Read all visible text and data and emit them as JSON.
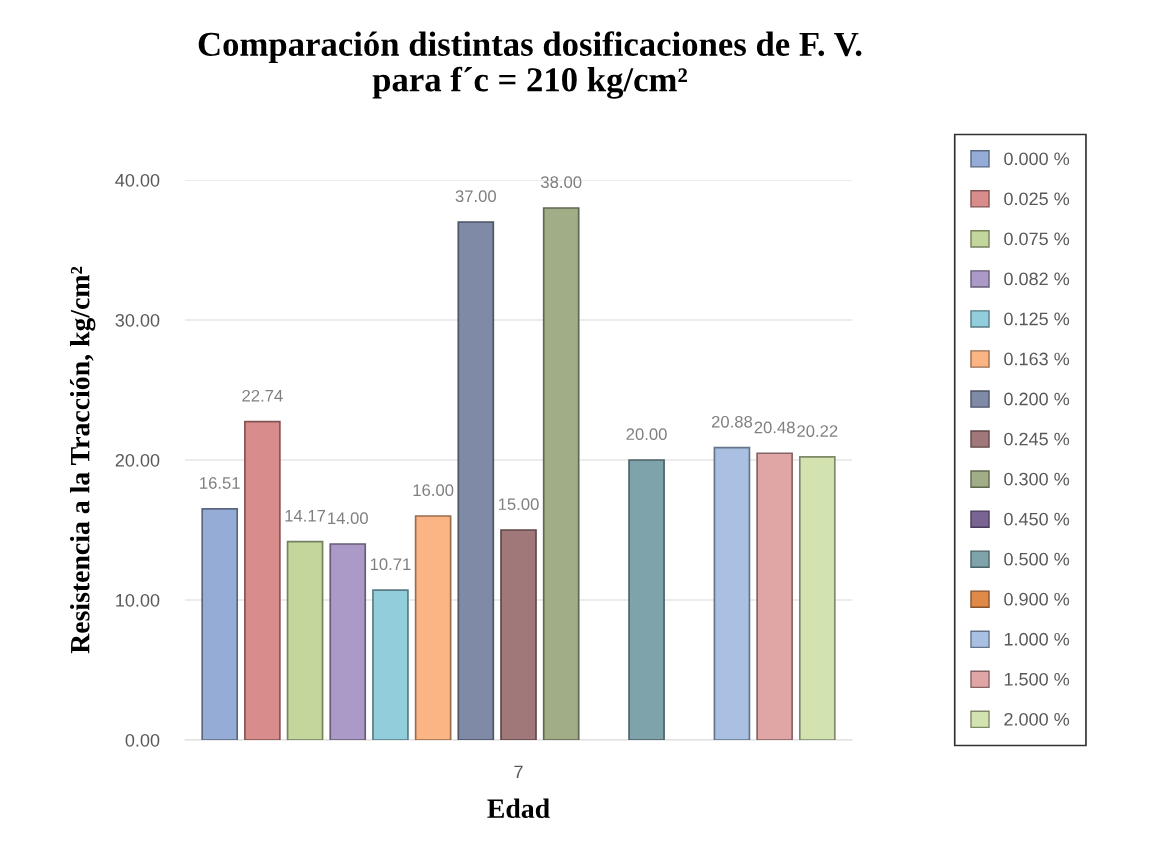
{
  "chart_data": {
    "type": "bar",
    "title": "Comparación distintas dosificaciones de F. V.\npara f´c = 210 kg/cm²",
    "xlabel": "Edad",
    "ylabel": "Resistencia a la Tracción, kg/cm²",
    "categories": [
      "7"
    ],
    "series": [
      {
        "name": "0.000 %",
        "color": "#95acd6",
        "values": [
          16.51
        ],
        "value_labels": [
          "16.51"
        ]
      },
      {
        "name": "0.025 %",
        "color": "#d98c8c",
        "values": [
          22.74
        ],
        "value_labels": [
          "22.74"
        ]
      },
      {
        "name": "0.075 %",
        "color": "#c3d69b",
        "values": [
          14.17
        ],
        "value_labels": [
          "14.17"
        ]
      },
      {
        "name": "0.082 %",
        "color": "#ab9ac7",
        "values": [
          14.0
        ],
        "value_labels": [
          "14.00"
        ]
      },
      {
        "name": "0.125 %",
        "color": "#92cddc",
        "values": [
          10.71
        ],
        "value_labels": [
          "10.71"
        ]
      },
      {
        "name": "0.163 %",
        "color": "#fbb584",
        "values": [
          16.0
        ],
        "value_labels": [
          "16.00"
        ]
      },
      {
        "name": "0.200 %",
        "color": "#7f8ba6",
        "values": [
          37.0
        ],
        "value_labels": [
          "37.00"
        ]
      },
      {
        "name": "0.245 %",
        "color": "#a0787a",
        "values": [
          15.0
        ],
        "value_labels": [
          "15.00"
        ]
      },
      {
        "name": "0.300 %",
        "color": "#a0ad86",
        "values": [
          38.0
        ],
        "value_labels": [
          "38.00"
        ]
      },
      {
        "name": "0.450 %",
        "color": "#7a6494",
        "values": [
          null
        ],
        "value_labels": [
          null
        ]
      },
      {
        "name": "0.500 %",
        "color": "#7fa3ab",
        "values": [
          20.0
        ],
        "value_labels": [
          "20.00"
        ]
      },
      {
        "name": "0.900 %",
        "color": "#e08a4a",
        "values": [
          null
        ],
        "value_labels": [
          null
        ]
      },
      {
        "name": "1.000 %",
        "color": "#a9c0e3",
        "values": [
          20.88
        ],
        "value_labels": [
          "20.88"
        ]
      },
      {
        "name": "1.500 %",
        "color": "#e0a5a5",
        "values": [
          20.48
        ],
        "value_labels": [
          "20.48"
        ]
      },
      {
        "name": "2.000 %",
        "color": "#d3e3b0",
        "values": [
          20.22
        ],
        "value_labels": [
          "20.22"
        ]
      }
    ],
    "ylim": [
      0,
      40
    ],
    "yticks": [
      {
        "value": 0,
        "label": "0.00"
      },
      {
        "value": 10,
        "label": "10.00"
      },
      {
        "value": 20,
        "label": "20.00"
      },
      {
        "value": 30,
        "label": "30.00"
      },
      {
        "value": 40,
        "label": "40.00"
      }
    ],
    "grid": "y",
    "legend": "right"
  }
}
